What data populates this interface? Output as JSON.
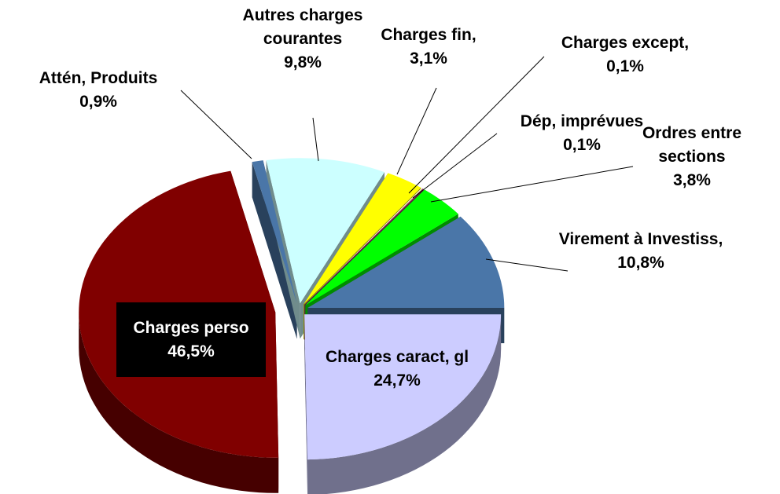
{
  "chart_data": {
    "type": "pie",
    "categories": [
      "Charges caract, gl",
      "Charges perso",
      "Attén, Produits",
      "Autres charges courantes",
      "Charges fin,",
      "Charges except,",
      "Dép, imprévues",
      "Ordres entre sections",
      "Virement à Investiss,"
    ],
    "values": [
      24.7,
      46.5,
      0.9,
      9.8,
      3.1,
      0.1,
      0.1,
      3.8,
      10.8
    ],
    "value_labels": [
      "24,7%",
      "46,5%",
      "0,9%",
      "9,8%",
      "3,1%",
      "0,1%",
      "0,1%",
      "3,8%",
      "10,8%"
    ],
    "colors": [
      "#ccccff",
      "#800000",
      "#4a76a8",
      "#ccffff",
      "#ffff00",
      "#ffffcc",
      "#993366",
      "#00ff00",
      "#4a76a8"
    ]
  }
}
